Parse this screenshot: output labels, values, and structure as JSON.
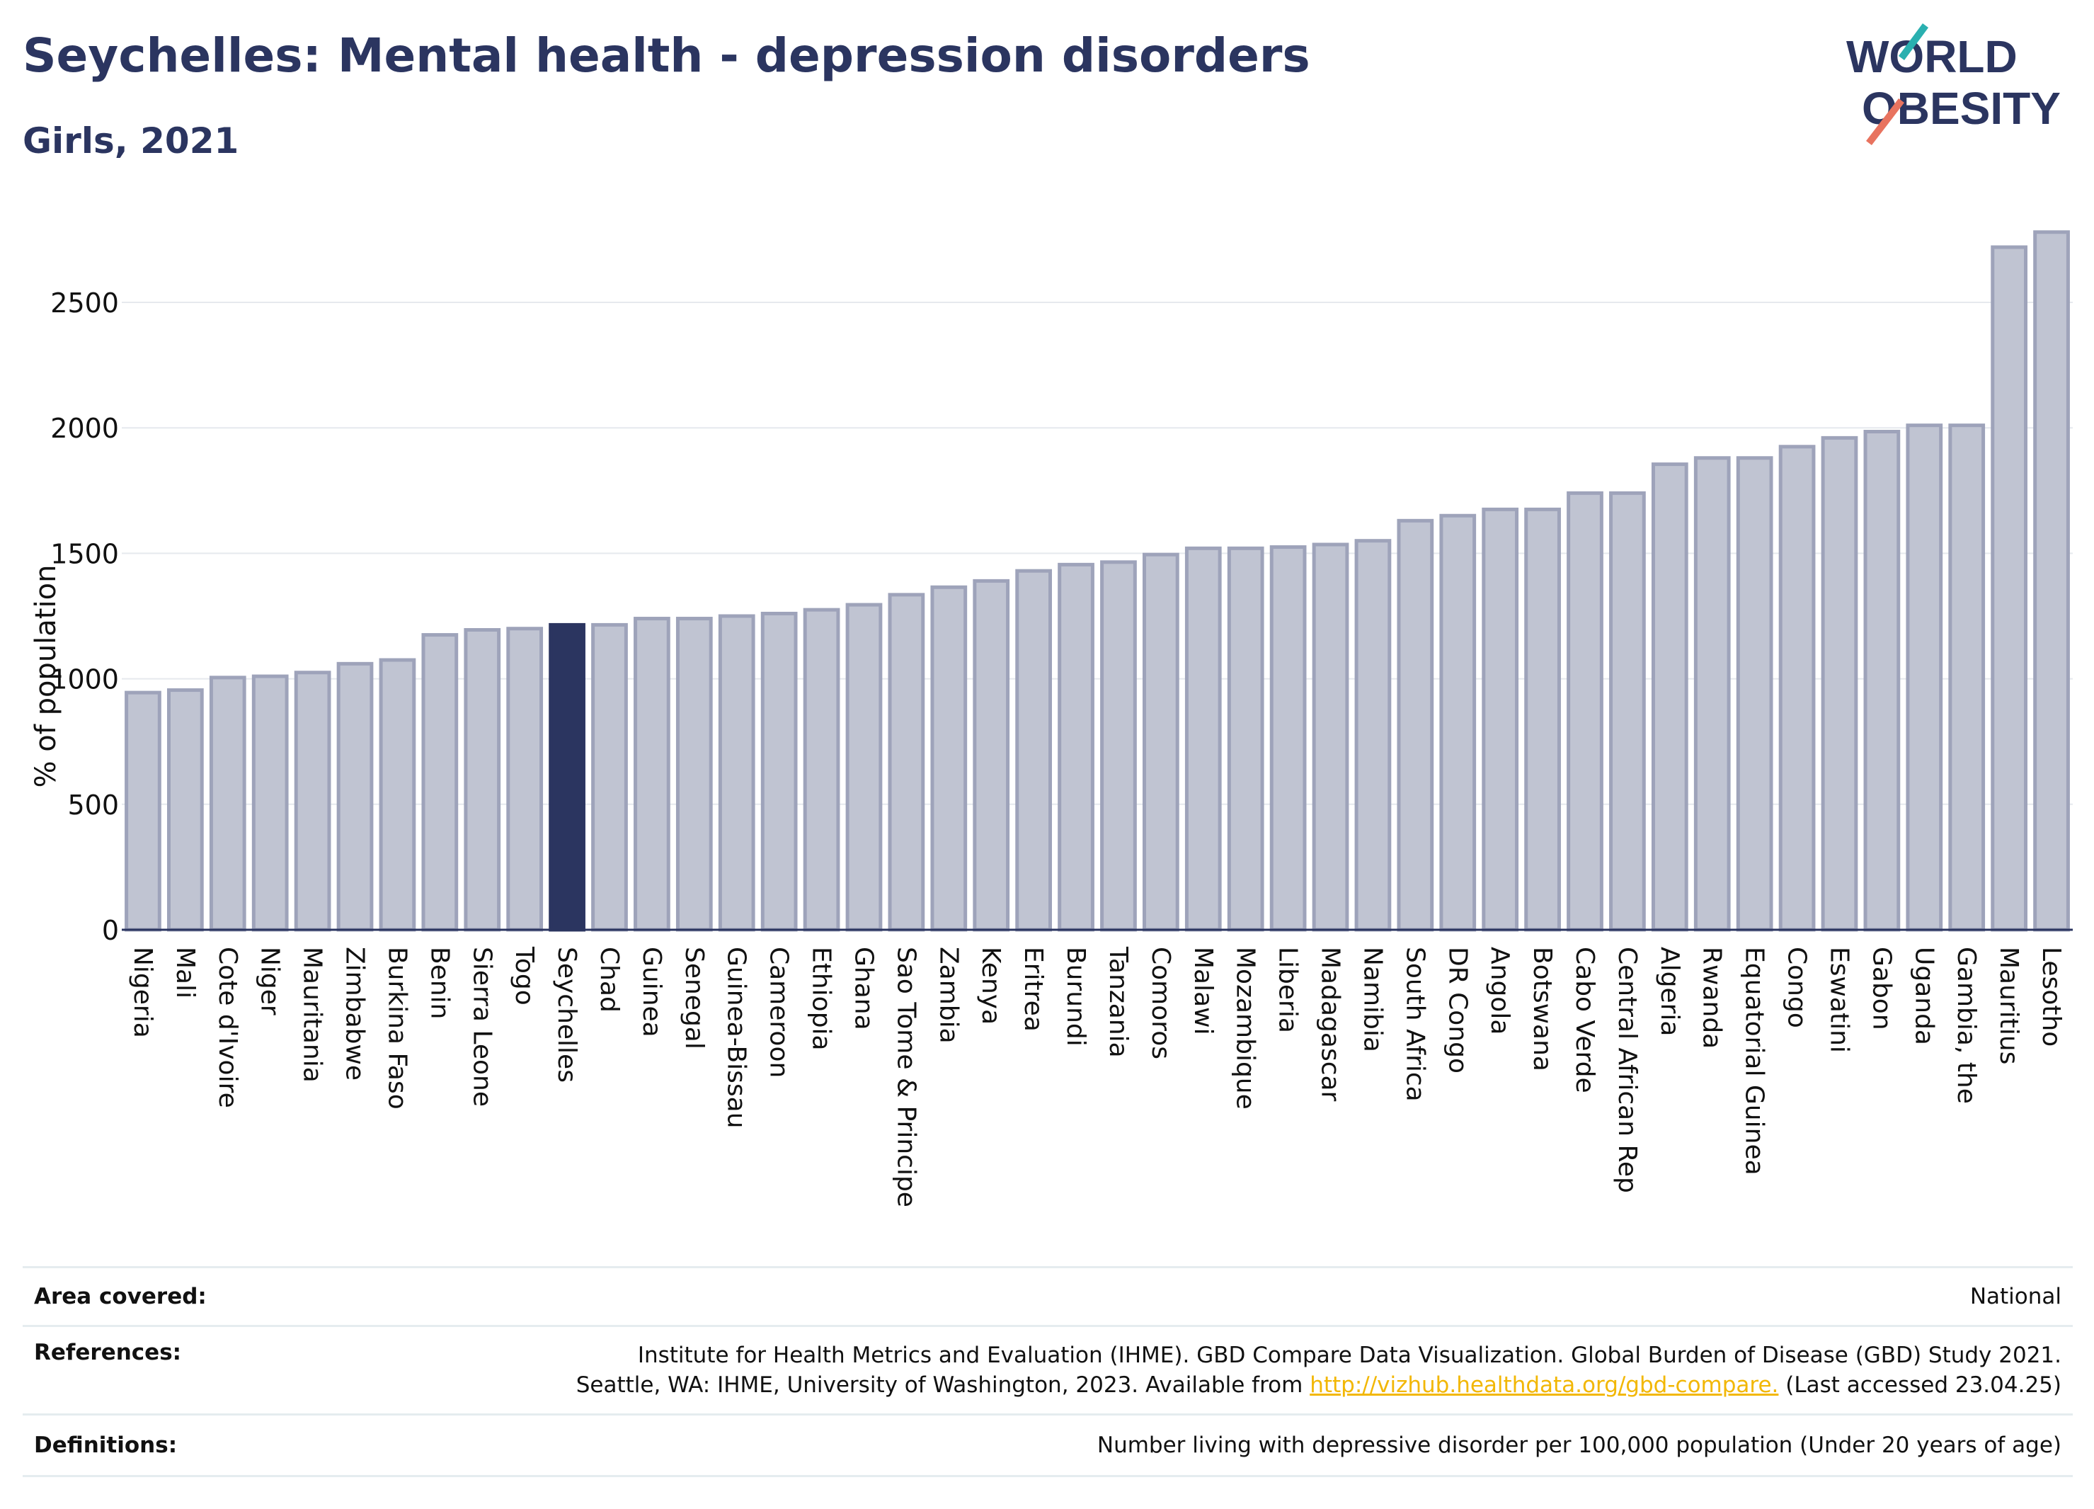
{
  "header": {
    "title": "Seychelles: Mental health - depression disorders",
    "subtitle": "Girls, 2021"
  },
  "logo": {
    "line1": "WORLD",
    "line2": "OBESITY"
  },
  "colors": {
    "bar": "#c0c4d2",
    "bar_edge": "#9ea3ba",
    "highlight": "#2b3560",
    "text": "#2b3560"
  },
  "chart_data": {
    "type": "bar",
    "ylabel": "% of population",
    "ylim": [
      0,
      2800
    ],
    "yticks": [
      0,
      500,
      1000,
      1500,
      2000,
      2500
    ],
    "grid": true,
    "highlight": "Seychelles",
    "categories": [
      "Nigeria",
      "Mali",
      "Cote d'Ivoire",
      "Niger",
      "Mauritania",
      "Zimbabwe",
      "Burkina Faso",
      "Benin",
      "Sierra Leone",
      "Togo",
      "Seychelles",
      "Chad",
      "Guinea",
      "Senegal",
      "Guinea-Bissau",
      "Cameroon",
      "Ethiopia",
      "Ghana",
      "Sao Tome & Principe",
      "Zambia",
      "Kenya",
      "Eritrea",
      "Burundi",
      "Tanzania",
      "Comoros",
      "Malawi",
      "Mozambique",
      "Liberia",
      "Madagascar",
      "Namibia",
      "South Africa",
      "DR Congo",
      "Angola",
      "Botswana",
      "Cabo Verde",
      "Central African Rep",
      "Algeria",
      "Rwanda",
      "Equatorial Guinea",
      "Congo",
      "Eswatini",
      "Gabon",
      "Uganda",
      "Gambia, the",
      "Mauritius",
      "Lesotho"
    ],
    "values": [
      945,
      955,
      1005,
      1010,
      1025,
      1060,
      1075,
      1175,
      1195,
      1200,
      1215,
      1215,
      1240,
      1240,
      1250,
      1260,
      1275,
      1295,
      1335,
      1365,
      1390,
      1430,
      1455,
      1465,
      1495,
      1520,
      1520,
      1525,
      1535,
      1550,
      1630,
      1650,
      1675,
      1675,
      1740,
      1740,
      1855,
      1880,
      1880,
      1925,
      1960,
      1985,
      2010,
      2010,
      2720,
      2780
    ]
  },
  "footer": {
    "area_label": "Area covered:",
    "area_value": "National",
    "references_label": "References:",
    "references_line1": "Institute for Health Metrics and Evaluation (IHME). GBD Compare Data Visualization. Global Burden of Disease (GBD) Study 2021.",
    "references_line2_pre": "Seattle, WA: IHME, University of Washington, 2023. Available from ",
    "references_link": "http://vizhub.healthdata.org/gbd-compare.",
    "references_line2_post": " (Last accessed 23.04.25)",
    "definitions_label": "Definitions:",
    "definitions_value": "Number living with depressive disorder per 100,000 population (Under 20 years of age)"
  }
}
